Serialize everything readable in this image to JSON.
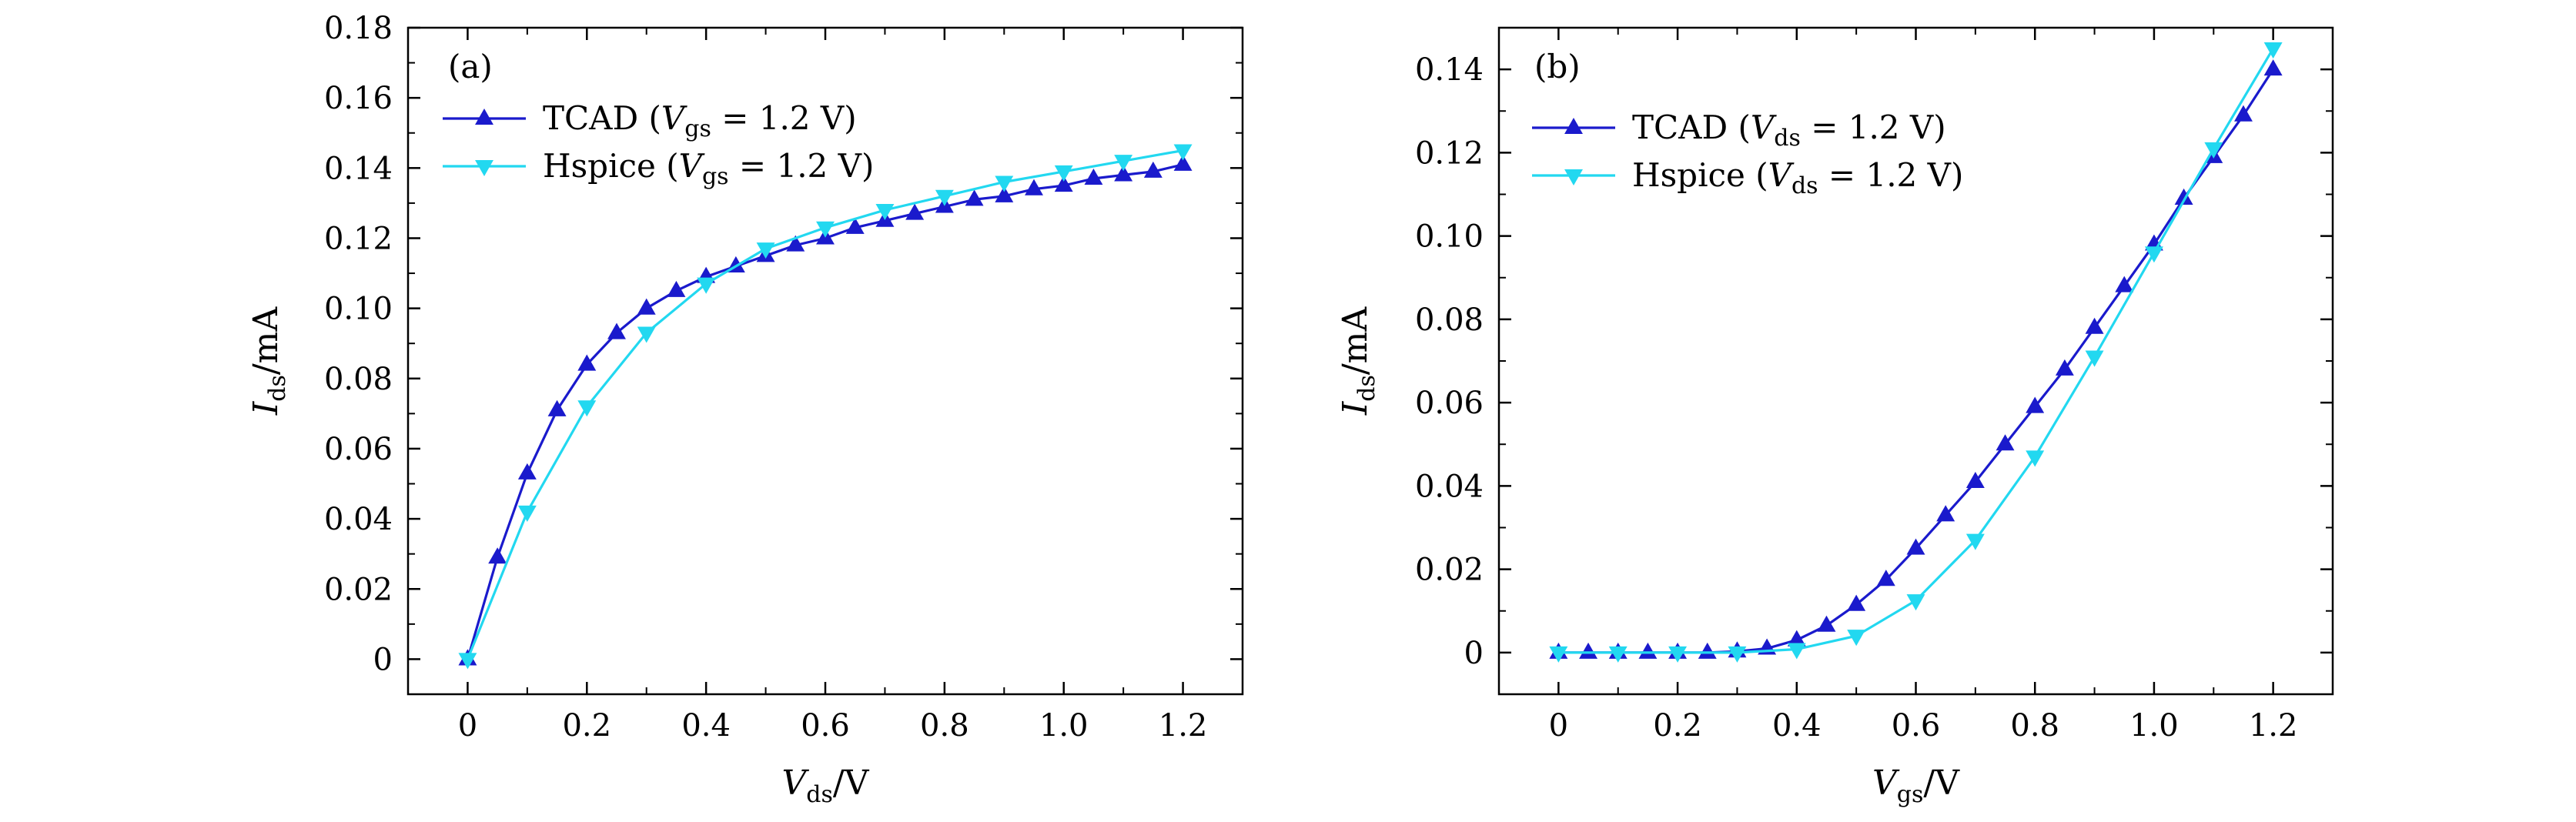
{
  "chart_data": [
    {
      "type": "line",
      "panel": "(a)",
      "xlabel": {
        "main": "V",
        "sub": "ds",
        "unit": "/V"
      },
      "ylabel": {
        "main": "I",
        "sub": "ds",
        "unit": "/mA"
      },
      "xlim": [
        -0.1,
        1.3
      ],
      "ylim": [
        -0.01,
        0.18
      ],
      "xticks": [
        0,
        0.2,
        0.4,
        0.6,
        0.8,
        1.0,
        1.2
      ],
      "xtick_labels": [
        "0",
        "0.2",
        "0.4",
        "0.6",
        "0.8",
        "1.0",
        "1.2"
      ],
      "yticks": [
        0,
        0.02,
        0.04,
        0.06,
        0.08,
        0.1,
        0.12,
        0.14,
        0.16,
        0.18
      ],
      "ytick_labels": [
        "0",
        "0.02",
        "0.04",
        "0.06",
        "0.08",
        "0.10",
        "0.12",
        "0.14",
        "0.16",
        "0.18"
      ],
      "legend_position": "top-left",
      "series": [
        {
          "name": "TCAD",
          "legend": {
            "prefix": "TCAD (",
            "var": "V",
            "sub": "gs",
            "suffix": " = 1.2 V)"
          },
          "color": "#1a1acc",
          "marker": "triangle-up",
          "x": [
            0,
            0.05,
            0.1,
            0.15,
            0.2,
            0.25,
            0.3,
            0.35,
            0.4,
            0.45,
            0.5,
            0.55,
            0.6,
            0.65,
            0.7,
            0.75,
            0.8,
            0.85,
            0.9,
            0.95,
            1.0,
            1.05,
            1.1,
            1.15,
            1.2
          ],
          "y": [
            0,
            0.029,
            0.053,
            0.071,
            0.084,
            0.093,
            0.1,
            0.105,
            0.109,
            0.112,
            0.115,
            0.118,
            0.12,
            0.123,
            0.125,
            0.127,
            0.129,
            0.131,
            0.132,
            0.134,
            0.135,
            0.137,
            0.138,
            0.139,
            0.141
          ]
        },
        {
          "name": "Hspice",
          "legend": {
            "prefix": "Hspice (",
            "var": "V",
            "sub": "gs",
            "suffix": " = 1.2 V)"
          },
          "color": "#22d8f0",
          "marker": "triangle-down",
          "x": [
            0,
            0.1,
            0.2,
            0.3,
            0.4,
            0.5,
            0.6,
            0.7,
            0.8,
            0.9,
            1.0,
            1.1,
            1.2
          ],
          "y": [
            0,
            0.042,
            0.072,
            0.093,
            0.107,
            0.117,
            0.123,
            0.128,
            0.132,
            0.136,
            0.139,
            0.142,
            0.145
          ]
        }
      ]
    },
    {
      "type": "line",
      "panel": "(b)",
      "xlabel": {
        "main": "V",
        "sub": "gs",
        "unit": "/V"
      },
      "ylabel": {
        "main": "I",
        "sub": "ds",
        "unit": "/mA"
      },
      "xlim": [
        -0.1,
        1.3
      ],
      "ylim": [
        -0.01,
        0.15
      ],
      "xticks": [
        0,
        0.2,
        0.4,
        0.6,
        0.8,
        1.0,
        1.2
      ],
      "xtick_labels": [
        "0",
        "0.2",
        "0.4",
        "0.6",
        "0.8",
        "1.0",
        "1.2"
      ],
      "yticks": [
        0,
        0.02,
        0.04,
        0.06,
        0.08,
        0.1,
        0.12,
        0.14
      ],
      "ytick_labels": [
        "0",
        "0.02",
        "0.04",
        "0.06",
        "0.08",
        "0.10",
        "0.12",
        "0.14"
      ],
      "legend_position": "top-left",
      "series": [
        {
          "name": "TCAD",
          "legend": {
            "prefix": "TCAD (",
            "var": "V",
            "sub": "ds",
            "suffix": " = 1.2 V)"
          },
          "color": "#1a1acc",
          "marker": "triangle-up",
          "x": [
            0,
            0.05,
            0.1,
            0.15,
            0.2,
            0.25,
            0.3,
            0.35,
            0.4,
            0.45,
            0.5,
            0.55,
            0.6,
            0.65,
            0.7,
            0.75,
            0.8,
            0.85,
            0.9,
            0.95,
            1.0,
            1.05,
            1.1,
            1.15,
            1.2
          ],
          "y": [
            0,
            0,
            0,
            0,
            0,
            0,
            0.0003,
            0.001,
            0.003,
            0.0065,
            0.0115,
            0.0175,
            0.025,
            0.033,
            0.041,
            0.05,
            0.059,
            0.068,
            0.078,
            0.088,
            0.098,
            0.109,
            0.119,
            0.129,
            0.14
          ]
        },
        {
          "name": "Hspice",
          "legend": {
            "prefix": "Hspice (",
            "var": "V",
            "sub": "ds",
            "suffix": " = 1.2 V)"
          },
          "color": "#22d8f0",
          "marker": "triangle-down",
          "x": [
            0,
            0.1,
            0.2,
            0.3,
            0.4,
            0.5,
            0.6,
            0.7,
            0.8,
            0.9,
            1.0,
            1.1,
            1.2
          ],
          "y": [
            0,
            0,
            0,
            0,
            0.0008,
            0.004,
            0.0125,
            0.027,
            0.047,
            0.071,
            0.096,
            0.121,
            0.145
          ]
        }
      ]
    }
  ]
}
